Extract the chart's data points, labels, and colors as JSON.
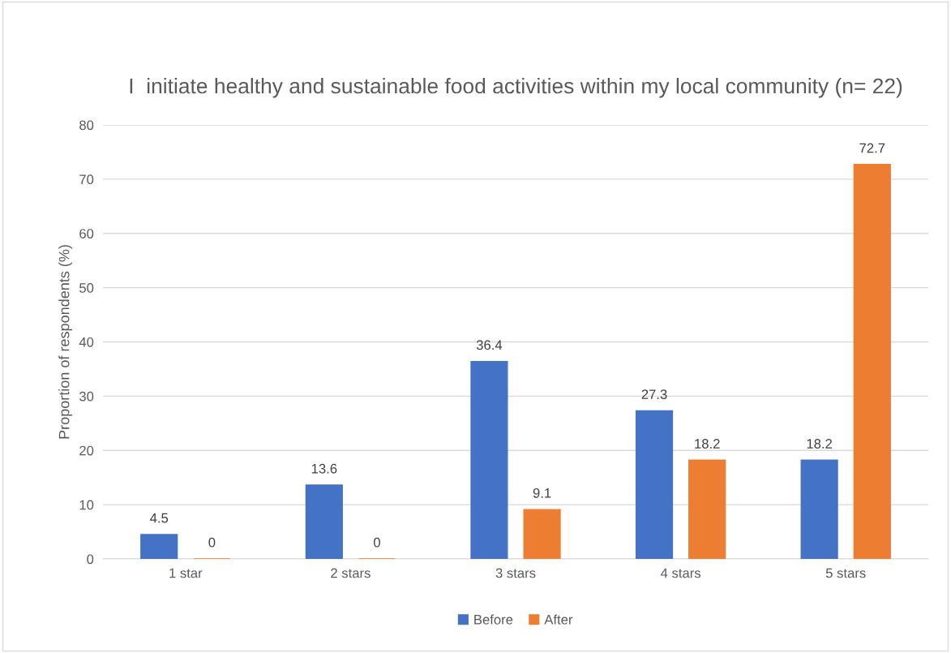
{
  "chart_data": {
    "type": "bar",
    "title": "I  initiate healthy and sustainable food activities within my local community (n= 22)",
    "ylabel": "Proportion of respondents (%)",
    "categories": [
      "1 star",
      "2 stars",
      "3 stars",
      "4 stars",
      "5 stars"
    ],
    "series": [
      {
        "name": "Before",
        "color": "#4472c4",
        "values": [
          4.5,
          13.6,
          36.4,
          27.3,
          18.2
        ]
      },
      {
        "name": "After",
        "color": "#ed7d31",
        "values": [
          0,
          0,
          9.1,
          18.2,
          72.7
        ]
      }
    ],
    "ylim": [
      0,
      80
    ],
    "yticks": [
      0,
      10,
      20,
      30,
      40,
      50,
      60,
      70,
      80
    ],
    "grid": "y",
    "legend": "bottom",
    "data_labels": true
  }
}
